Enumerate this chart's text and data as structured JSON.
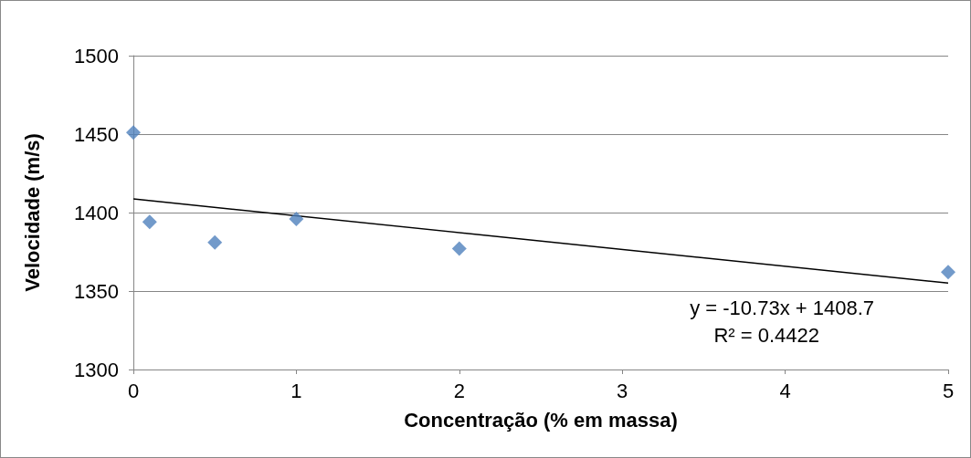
{
  "chart_data": {
    "type": "scatter",
    "xlabel": "Concentração (% em massa)",
    "ylabel": "Velocidade (m/s)",
    "xlim": [
      0,
      5
    ],
    "xticks": [
      0,
      1,
      2,
      3,
      4,
      5
    ],
    "ylim": [
      1300,
      1500
    ],
    "yticks": [
      1300,
      1350,
      1400,
      1450,
      1500
    ],
    "grid": "y",
    "marker": "diamond",
    "series": [
      {
        "color": "#4f81bd",
        "x": [
          0,
          0.1,
          0.5,
          1,
          2,
          5
        ],
        "values": [
          1451,
          1394,
          1381,
          1396,
          1377,
          1362
        ]
      },
      {
        "type": "line",
        "color": "#000000",
        "marker": "none",
        "x": [
          0,
          5
        ],
        "values": [
          1408.7,
          1355.1
        ]
      }
    ],
    "annotations": [
      "y = -10.73x + 1408.7",
      "R² = 0.4422"
    ]
  }
}
